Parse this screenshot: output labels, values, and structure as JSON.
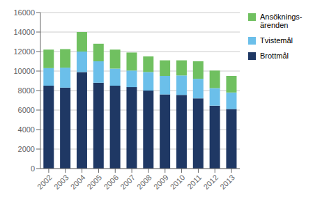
{
  "chart_data": {
    "type": "bar",
    "stacked": true,
    "categories": [
      "2002",
      "2003",
      "2004",
      "2005",
      "2006",
      "2007",
      "2008",
      "2009",
      "2010",
      "2011",
      "2012",
      "2013"
    ],
    "series": [
      {
        "name": "Brottmål",
        "color": "#1F3864",
        "values": [
          8500,
          8300,
          9900,
          8800,
          8500,
          8350,
          8000,
          7600,
          7550,
          7200,
          6450,
          6100
        ]
      },
      {
        "name": "Tvistemål",
        "color": "#6BBFEA",
        "values": [
          1800,
          2050,
          2100,
          2200,
          1750,
          1700,
          1900,
          1900,
          2000,
          2000,
          1800,
          1700
        ]
      },
      {
        "name": "Ansöknings-\närenden",
        "color": "#70C060",
        "values": [
          1900,
          1900,
          2000,
          1800,
          1950,
          1850,
          1600,
          1600,
          1550,
          1800,
          1800,
          1700
        ]
      }
    ],
    "ylim": [
      0,
      16000
    ],
    "yticks": [
      0,
      2000,
      4000,
      6000,
      8000,
      10000,
      12000,
      14000,
      16000
    ],
    "grid": true,
    "legend": "right"
  }
}
